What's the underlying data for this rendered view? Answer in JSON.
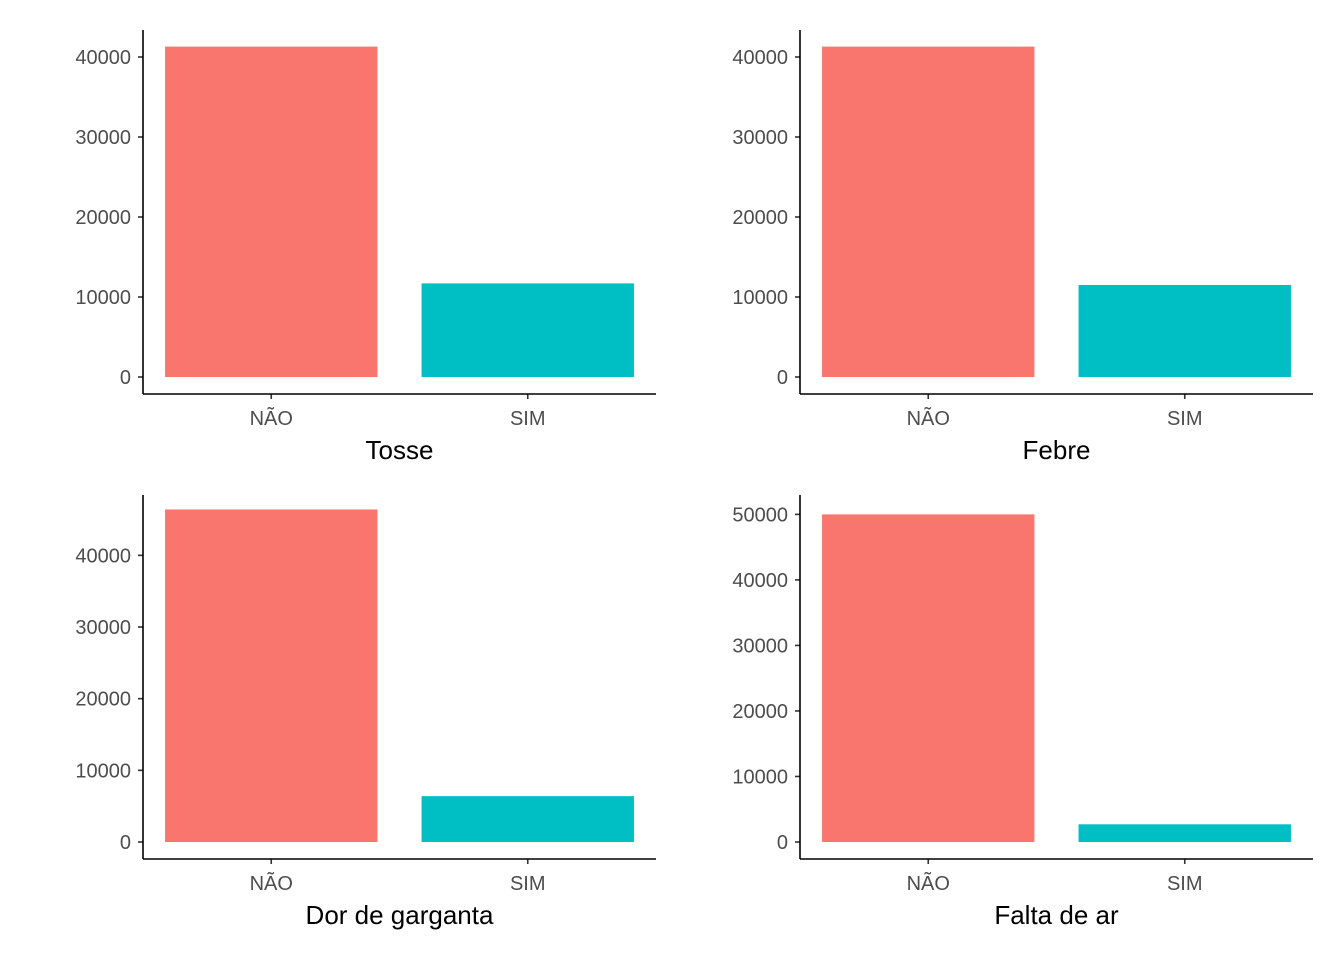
{
  "chart_data": [
    {
      "type": "bar",
      "categories": [
        "NÃO",
        "SIM"
      ],
      "values": [
        41300,
        11700
      ],
      "colors": [
        "#F8766D",
        "#00BFC4"
      ],
      "xlabel": "Tosse",
      "ylabel": "",
      "ylim": [
        0,
        43000
      ],
      "yticks": [
        0,
        10000,
        20000,
        30000,
        40000
      ],
      "grid": false,
      "legend": "none"
    },
    {
      "type": "bar",
      "categories": [
        "NÃO",
        "SIM"
      ],
      "values": [
        41300,
        11500
      ],
      "colors": [
        "#F8766D",
        "#00BFC4"
      ],
      "xlabel": "Febre",
      "ylabel": "",
      "ylim": [
        0,
        43000
      ],
      "yticks": [
        0,
        10000,
        20000,
        30000,
        40000
      ],
      "grid": false,
      "legend": "none"
    },
    {
      "type": "bar",
      "categories": [
        "NÃO",
        "SIM"
      ],
      "values": [
        46400,
        6400
      ],
      "colors": [
        "#F8766D",
        "#00BFC4"
      ],
      "xlabel": "Dor de garganta",
      "ylabel": "",
      "ylim": [
        0,
        48000
      ],
      "yticks": [
        0,
        10000,
        20000,
        30000,
        40000
      ],
      "grid": false,
      "legend": "none"
    },
    {
      "type": "bar",
      "categories": [
        "NÃO",
        "SIM"
      ],
      "values": [
        50000,
        2700
      ],
      "colors": [
        "#F8766D",
        "#00BFC4"
      ],
      "xlabel": "Falta de ar",
      "ylabel": "",
      "ylim": [
        0,
        52500
      ],
      "yticks": [
        0,
        10000,
        20000,
        30000,
        40000,
        50000
      ],
      "grid": false,
      "legend": "none"
    }
  ]
}
